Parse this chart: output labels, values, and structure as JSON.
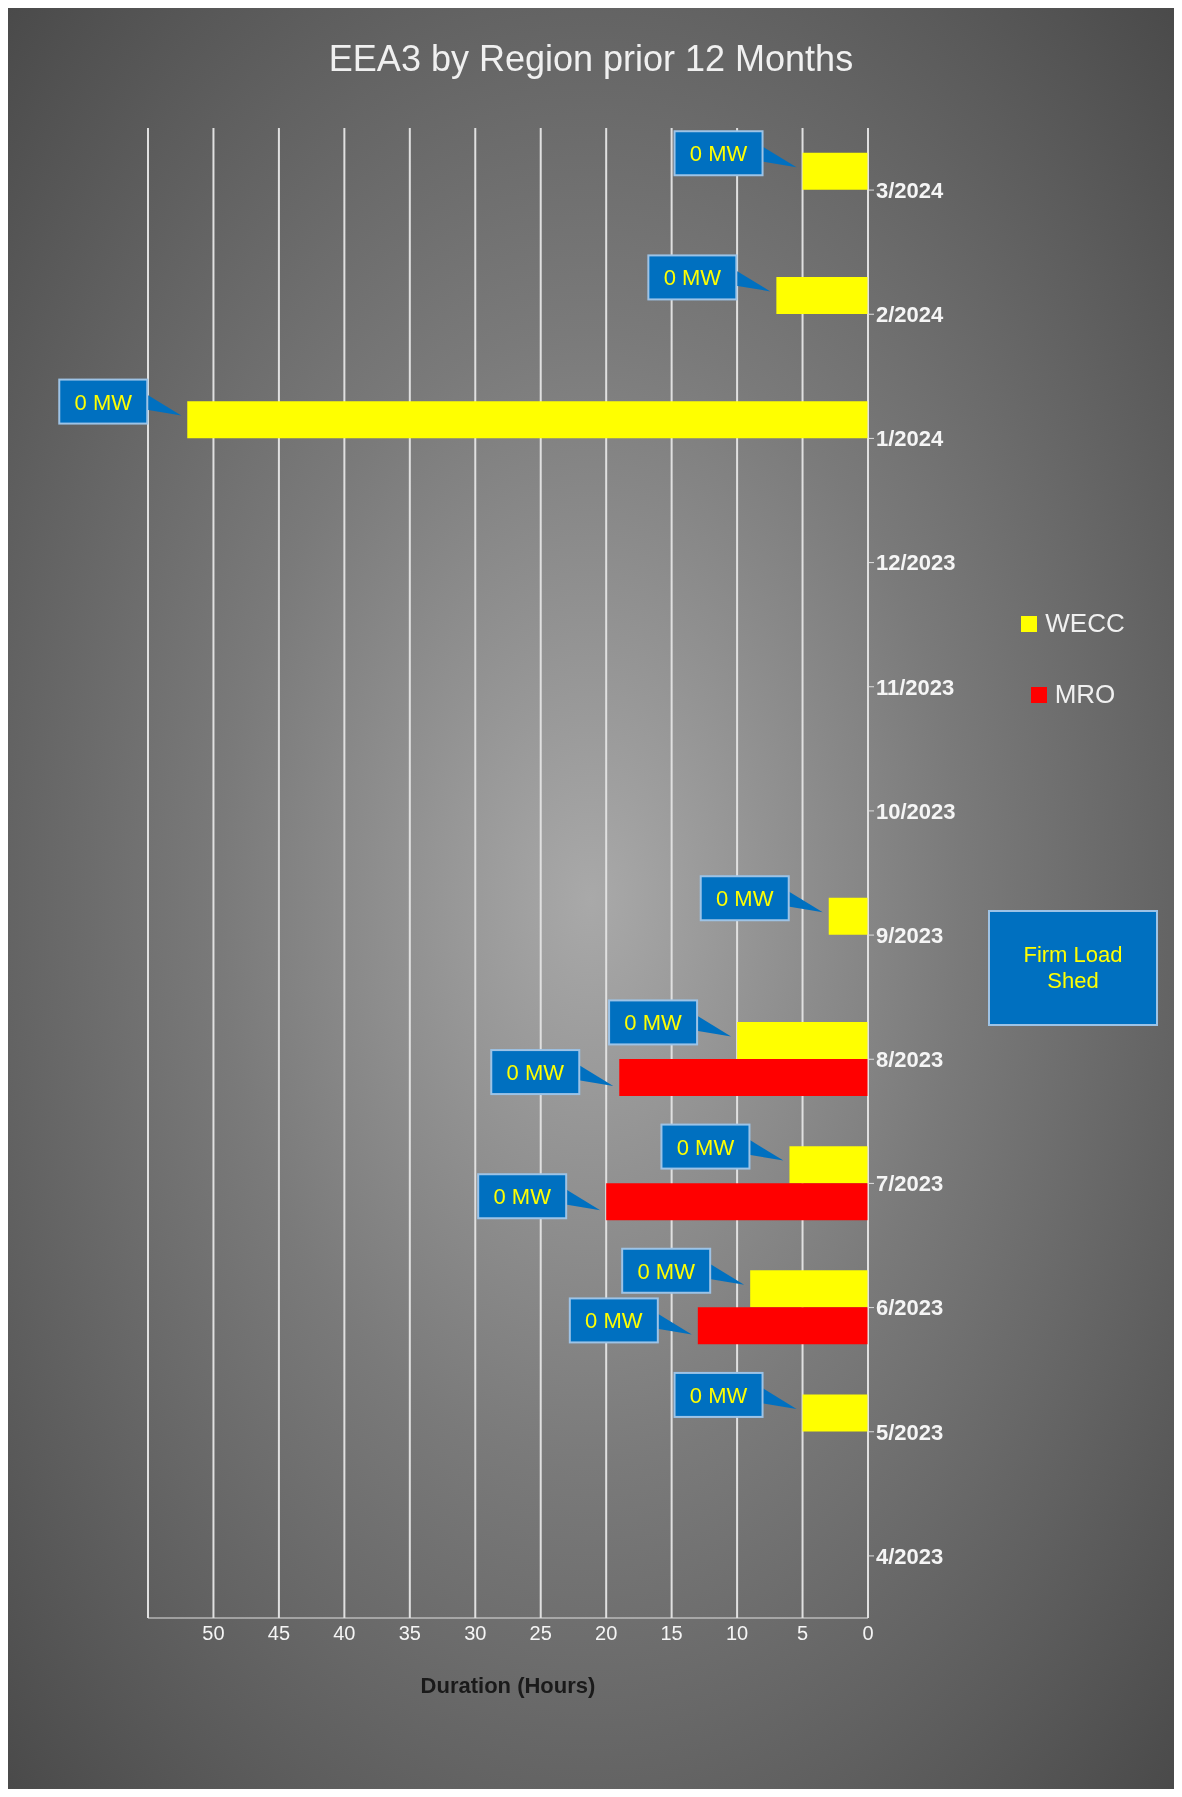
{
  "chart_data": {
    "type": "bar",
    "title": "EEA3 by Region prior 12 Months",
    "orientation": "horizontal",
    "categories": [
      "3/2024",
      "2/2024",
      "1/2024",
      "12/2023",
      "11/2023",
      "10/2023",
      "9/2023",
      "8/2023",
      "7/2023",
      "6/2023",
      "5/2023",
      "4/2023"
    ],
    "series": [
      {
        "name": "WECC",
        "color": "#ffff00",
        "values": [
          5,
          7,
          52,
          0,
          0,
          0,
          3,
          10,
          6,
          9,
          5,
          0
        ]
      },
      {
        "name": "MRO",
        "color": "#ff0000",
        "values": [
          0,
          0,
          0,
          0,
          0,
          0,
          0,
          19,
          20,
          13,
          0,
          0
        ]
      }
    ],
    "xlabel": "Duration (Hours)",
    "xlim": [
      55,
      0
    ],
    "xticks": [
      {
        "value": 55,
        "label": null
      },
      50,
      45,
      40,
      35,
      30,
      25,
      20,
      15,
      10,
      5,
      0
    ],
    "grid": "x",
    "legend": "right",
    "annotations": [
      {
        "text": "0 MW",
        "x": 5,
        "y": "3/2024"
      },
      {
        "text": "0 MW",
        "x": 7,
        "y": "2/2024"
      },
      {
        "text": "0 MW",
        "x": 52,
        "y": "1/2024"
      },
      {
        "text": "0 MW",
        "x": 3,
        "y": "9/2023"
      },
      {
        "text": "0 MW",
        "x": 10,
        "y": "8/2023"
      },
      {
        "text": "0 MW",
        "x": 19,
        "y": "8/2023"
      },
      {
        "text": "0 MW",
        "x": 6,
        "y": "7/2023"
      },
      {
        "text": "0 MW",
        "x": 20,
        "y": "7/2023"
      },
      {
        "text": "0 MW",
        "x": 9,
        "y": "6/2023"
      },
      {
        "text": "0 MW",
        "x": 13,
        "y": "6/2023"
      },
      {
        "text": "0 MW",
        "x": 5,
        "y": "5/2023"
      },
      "Firm Load Shed"
    ]
  }
}
